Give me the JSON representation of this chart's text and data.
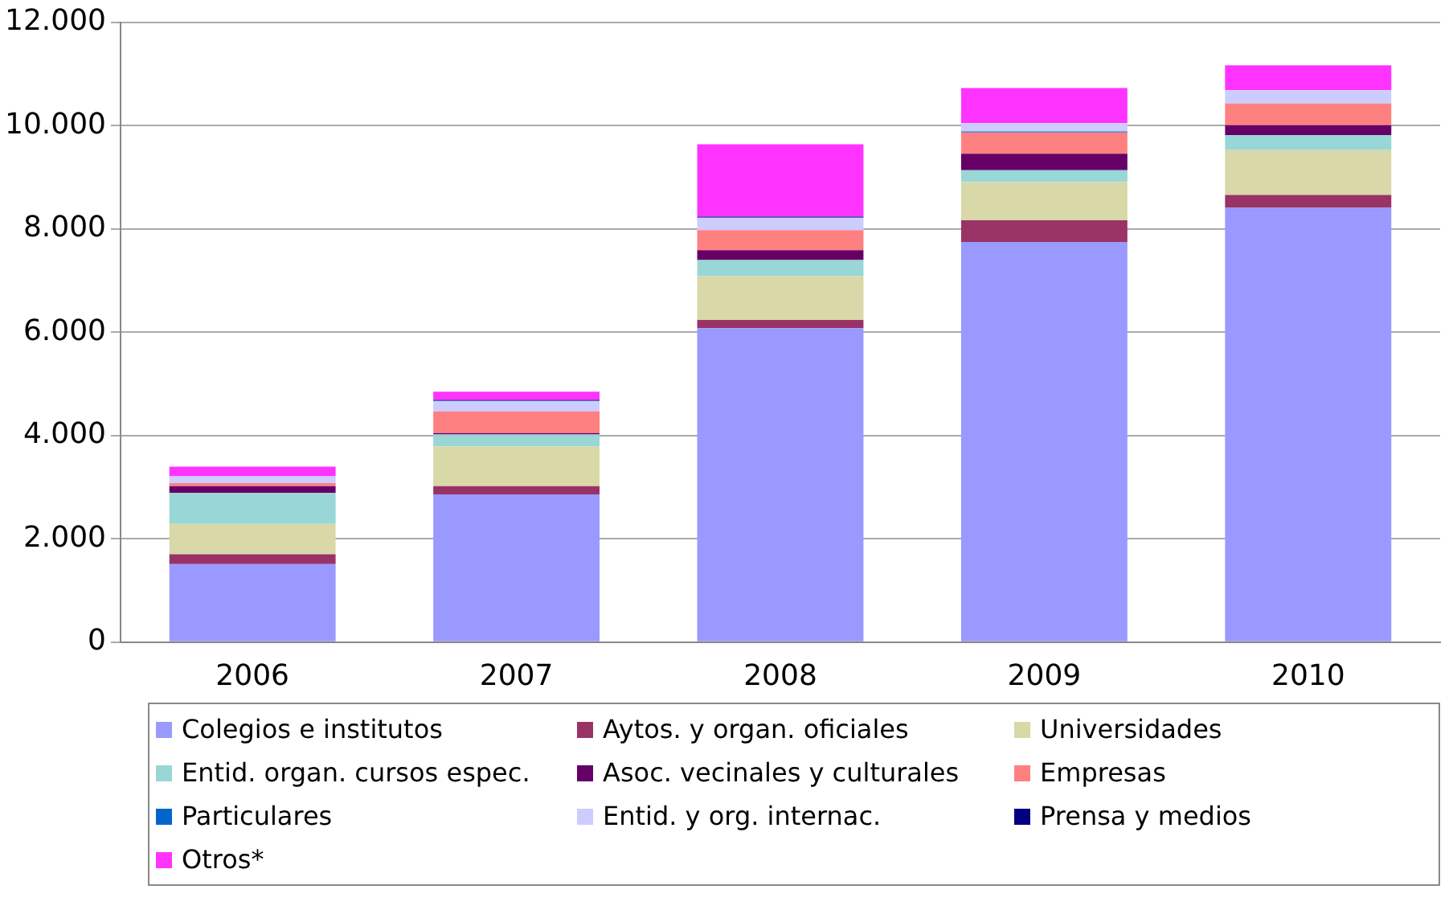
{
  "chart_data": {
    "type": "bar",
    "stacked": true,
    "grid": "y",
    "legend": "bottom",
    "categories": [
      "2006",
      "2007",
      "2008",
      "2009",
      "2010"
    ],
    "ylim": [
      0,
      12000
    ],
    "yticks": [
      {
        "value": 0,
        "label": "0"
      },
      {
        "value": 2000,
        "label": "2.000"
      },
      {
        "value": 4000,
        "label": "4.000"
      },
      {
        "value": 6000,
        "label": "6.000"
      },
      {
        "value": 8000,
        "label": "8.000"
      },
      {
        "value": 10000,
        "label": "10.000"
      },
      {
        "value": 12000,
        "label": "12.000"
      }
    ],
    "series": [
      {
        "name": "Colegios e institutos",
        "color": "#9999ff",
        "values": [
          1510,
          2860,
          6080,
          7750,
          8410
        ]
      },
      {
        "name": "Aytos. y organ. oficiales",
        "color": "#993366",
        "values": [
          190,
          160,
          160,
          420,
          250
        ]
      },
      {
        "name": "Universidades",
        "color": "#d8d8a8",
        "values": [
          590,
          770,
          850,
          740,
          870
        ]
      },
      {
        "name": "Entid. organ. cursos espec.",
        "color": "#99d6d6",
        "values": [
          600,
          230,
          310,
          230,
          290
        ]
      },
      {
        "name": "Asoc. vecinales y culturales",
        "color": "#660066",
        "values": [
          130,
          30,
          190,
          320,
          190
        ]
      },
      {
        "name": "Empresas",
        "color": "#ff8080",
        "values": [
          60,
          420,
          390,
          410,
          420
        ]
      },
      {
        "name": "Particulares",
        "color": "#0066cc",
        "values": [
          null,
          null,
          null,
          20,
          null
        ]
      },
      {
        "name": "Entid. y org. internac.",
        "color": "#ccccff",
        "values": [
          130,
          200,
          240,
          160,
          260
        ]
      },
      {
        "name": "Prensa y medios",
        "color": "#000080",
        "values": [
          null,
          20,
          20,
          null,
          null
        ]
      },
      {
        "name": "Otros*",
        "color": "#ff33ff",
        "values": [
          190,
          160,
          1400,
          680,
          480
        ]
      }
    ]
  }
}
